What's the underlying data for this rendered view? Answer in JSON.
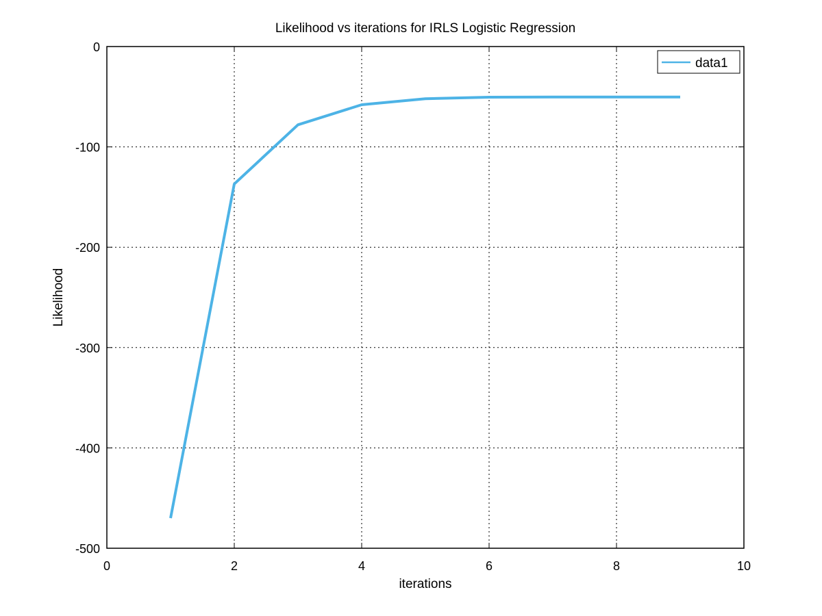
{
  "chart_data": {
    "type": "line",
    "title": "Likelihood vs iterations for IRLS Logistic Regression",
    "xlabel": "iterations",
    "ylabel": "Likelihood",
    "xlim": [
      0,
      10
    ],
    "ylim": [
      -500,
      0
    ],
    "xticks": [
      0,
      2,
      4,
      6,
      8,
      10
    ],
    "yticks": [
      0,
      -100,
      -200,
      -300,
      -400,
      -500
    ],
    "xtick_labels": [
      "0",
      "2",
      "4",
      "6",
      "8",
      "10"
    ],
    "ytick_labels": [
      "0",
      "-100",
      "-200",
      "-300",
      "-400",
      "-500"
    ],
    "grid": true,
    "legend_position": "top-right",
    "series": [
      {
        "name": "data1",
        "color": "#4db3e6",
        "x": [
          1,
          2,
          3,
          4,
          5,
          6,
          7,
          8,
          9
        ],
        "y": [
          -470,
          -137,
          -78,
          -58,
          -52,
          -50.5,
          -50.3,
          -50.3,
          -50.3
        ]
      }
    ]
  }
}
